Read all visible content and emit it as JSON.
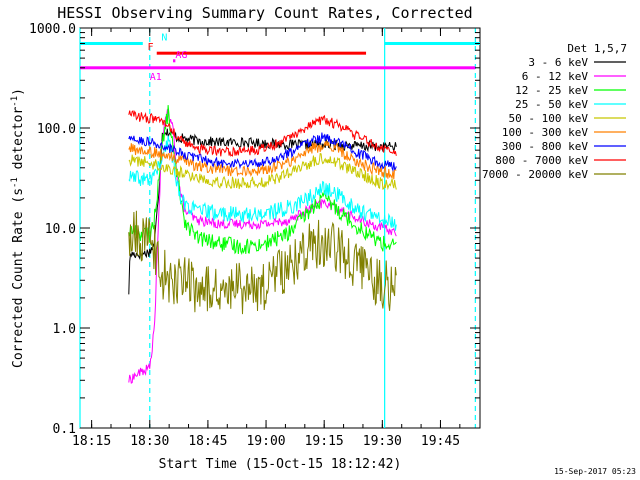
{
  "chart_data": {
    "type": "line",
    "title": "HESSI Observing Summary Count Rates, Corrected",
    "xlabel": "Start Time (15-Oct-15 18:12:42)",
    "ylabel": "Corrected Count Rate (s",
    "ylabel_sup": "-1",
    "ylabel_tail": " detector",
    "ylabel_close": ")",
    "yscale": "log",
    "ylim": [
      0.1,
      1000
    ],
    "xlim_minutes": [
      18.2,
      19.92
    ],
    "x_ticks": [
      {
        "label": "18:15",
        "t": 18.25
      },
      {
        "label": "18:30",
        "t": 18.5
      },
      {
        "label": "18:45",
        "t": 18.75
      },
      {
        "label": "19:00",
        "t": 19.0
      },
      {
        "label": "19:15",
        "t": 19.25
      },
      {
        "label": "19:30",
        "t": 19.5
      },
      {
        "label": "19:45",
        "t": 19.75
      }
    ],
    "y_ticks": [
      {
        "label": "0.1",
        "v": 0.1
      },
      {
        "label": "1.0",
        "v": 1
      },
      {
        "label": "10.0",
        "v": 10
      },
      {
        "label": "100.0",
        "v": 100
      },
      {
        "label": "1000.0",
        "v": 1000
      }
    ],
    "legend_title": "Det 1,5,7",
    "legend_position": "right",
    "series": [
      {
        "name": "3 - 6 keV",
        "color": "#000000",
        "t": [
          18.41,
          18.415,
          18.43,
          18.47,
          18.5,
          18.52,
          18.54,
          18.555,
          18.58,
          18.62,
          18.7,
          18.8,
          18.9,
          19.0,
          19.1,
          19.2,
          19.3,
          19.4,
          19.48,
          19.53,
          19.56
        ],
        "y": [
          2.3,
          5.5,
          5.5,
          5.5,
          5.8,
          7.0,
          25,
          95,
          90,
          80,
          75,
          72,
          72,
          70,
          68,
          68,
          68,
          66,
          65,
          65,
          65
        ]
      },
      {
        "name": "6 - 12 keV",
        "color": "#ff00ff",
        "t": [
          18.41,
          18.45,
          18.5,
          18.52,
          18.535,
          18.55,
          18.57,
          18.6,
          18.62,
          18.65,
          18.7,
          18.8,
          18.9,
          19.0,
          19.1,
          19.2,
          19.25,
          19.3,
          19.4,
          19.5,
          19.56
        ],
        "y": [
          0.3,
          0.35,
          0.4,
          1.0,
          8,
          60,
          145,
          100,
          30,
          15,
          12,
          11,
          11,
          11,
          12,
          16,
          18,
          16,
          12,
          10,
          9
        ]
      },
      {
        "name": "12 - 25 keV",
        "color": "#00ff00",
        "t": [
          18.41,
          18.45,
          18.5,
          18.52,
          18.55,
          18.58,
          18.6,
          18.65,
          18.7,
          18.8,
          18.9,
          19.0,
          19.1,
          19.2,
          19.25,
          19.3,
          19.4,
          19.5,
          19.56
        ],
        "y": [
          9.5,
          9.0,
          8.5,
          12,
          60,
          150,
          60,
          12,
          8,
          7,
          6.5,
          7,
          9,
          16,
          20,
          16,
          10,
          7,
          6.5
        ]
      },
      {
        "name": "25 - 50 keV",
        "color": "#00ffff",
        "t": [
          18.41,
          18.45,
          18.5,
          18.55,
          18.58,
          18.6,
          18.62,
          18.65,
          18.7,
          18.8,
          18.9,
          19.0,
          19.1,
          19.2,
          19.25,
          19.3,
          19.4,
          19.5,
          19.56
        ],
        "y": [
          32,
          31,
          30,
          45,
          75,
          50,
          25,
          17,
          15,
          14,
          13.5,
          14,
          16,
          21,
          25,
          22,
          15,
          12,
          11
        ]
      },
      {
        "name": "50 - 100 keV",
        "color": "#c8c800",
        "t": [
          18.41,
          18.5,
          18.6,
          18.7,
          18.8,
          18.9,
          19.0,
          19.1,
          19.2,
          19.25,
          19.3,
          19.4,
          19.5,
          19.56
        ],
        "y": [
          48,
          45,
          38,
          32,
          29,
          28,
          29,
          35,
          46,
          50,
          46,
          35,
          28,
          27
        ]
      },
      {
        "name": "100 - 300 keV",
        "color": "#ff8000",
        "t": [
          18.41,
          18.5,
          18.6,
          18.7,
          18.8,
          18.9,
          19.0,
          19.1,
          19.2,
          19.25,
          19.3,
          19.4,
          19.5,
          19.56
        ],
        "y": [
          62,
          58,
          50,
          42,
          38,
          37,
          38,
          46,
          62,
          68,
          62,
          45,
          36,
          35
        ]
      },
      {
        "name": "300 - 800 keV",
        "color": "#0000ff",
        "t": [
          18.41,
          18.5,
          18.6,
          18.7,
          18.8,
          18.9,
          19.0,
          19.1,
          19.2,
          19.25,
          19.3,
          19.4,
          19.5,
          19.56
        ],
        "y": [
          78,
          72,
          60,
          50,
          45,
          44,
          46,
          56,
          75,
          82,
          75,
          55,
          44,
          42
        ]
      },
      {
        "name": "800 - 7000 keV",
        "color": "#ff0000",
        "t": [
          18.41,
          18.5,
          18.55,
          18.6,
          18.65,
          18.7,
          18.8,
          18.9,
          19.0,
          19.1,
          19.2,
          19.25,
          19.3,
          19.4,
          19.5,
          19.56
        ],
        "y": [
          135,
          125,
          120,
          90,
          70,
          62,
          58,
          58,
          62,
          80,
          112,
          122,
          110,
          80,
          62,
          58
        ]
      },
      {
        "name": "7000 - 20000 keV",
        "color": "#808000",
        "t": [
          18.41,
          18.5,
          18.52,
          18.55,
          18.6,
          18.65,
          18.7,
          18.8,
          18.9,
          19.0,
          19.1,
          19.2,
          19.25,
          19.3,
          19.4,
          19.5,
          19.56
        ],
        "y": [
          8.5,
          8.0,
          6.0,
          3.5,
          3.0,
          2.8,
          2.6,
          2.5,
          2.5,
          2.7,
          4,
          6.5,
          7.5,
          6.5,
          4,
          2.8,
          2.5
        ]
      }
    ],
    "state_bars": [
      {
        "label": "N",
        "color": "#00ffff",
        "y": 700,
        "segments": [
          [
            18.2,
            18.47
          ],
          [
            19.51,
            19.92
          ]
        ]
      },
      {
        "label": "F",
        "color": "#ff0000",
        "y": 560,
        "segments": [
          [
            18.53,
            19.43
          ]
        ]
      },
      {
        "label": "AG",
        "color": "#ff00ff",
        "y": 470,
        "segments": [
          [
            18.6,
            18.61
          ]
        ]
      },
      {
        "label": "A1",
        "color": "#ff00ff",
        "y": 400,
        "segments": [
          [
            18.2,
            19.9
          ]
        ]
      }
    ],
    "vertical_lines": [
      {
        "t": 18.2,
        "style": "solid",
        "color": "#00ffff"
      },
      {
        "t": 18.5,
        "style": "dashed",
        "color": "#00ffff"
      },
      {
        "t": 19.51,
        "style": "solid",
        "color": "#00ffff"
      },
      {
        "t": 19.9,
        "style": "dashed",
        "color": "#00ffff"
      }
    ]
  },
  "footer": {
    "timestamp": "15-Sep-2017 05:23"
  }
}
